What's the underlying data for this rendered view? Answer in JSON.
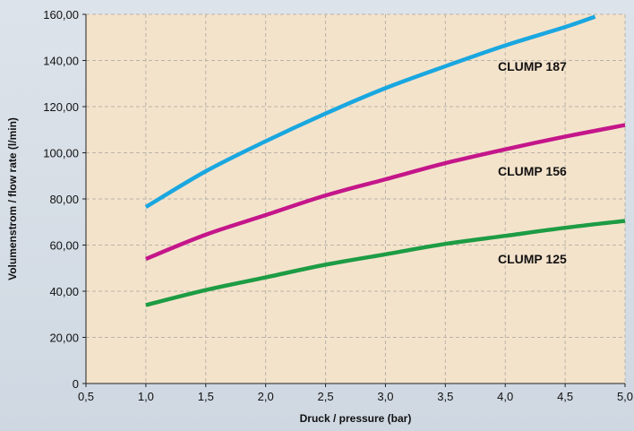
{
  "chart_data": {
    "type": "line",
    "title": "",
    "xlabel": "Druck / pressure (bar)",
    "ylabel": "Volumenstrom / flow rate (l/min)",
    "xlim": [
      0.5,
      5.0
    ],
    "ylim": [
      0,
      160
    ],
    "x_ticks": [
      "0,5",
      "1,0",
      "1,5",
      "2,0",
      "2,5",
      "3,0",
      "3,5",
      "4,0",
      "4,5",
      "5,0"
    ],
    "y_ticks": [
      "0",
      "20,00",
      "40,00",
      "60,00",
      "80,00",
      "100,00",
      "120,00",
      "140,00",
      "160,00"
    ],
    "grid": true,
    "background_color": "#f4e3cb",
    "series": [
      {
        "name": "CLUMP 187",
        "color": "#1aa7e0",
        "x": [
          1.0,
          1.5,
          2.0,
          2.5,
          3.0,
          3.5,
          4.0,
          4.5,
          4.75
        ],
        "y": [
          76.5,
          92,
          105,
          117,
          128,
          137.5,
          146.5,
          154.5,
          159
        ]
      },
      {
        "name": "CLUMP 156",
        "color": "#c4168a",
        "x": [
          1.0,
          1.5,
          2.0,
          2.5,
          3.0,
          3.5,
          4.0,
          4.5,
          5.0
        ],
        "y": [
          54,
          64.5,
          73,
          81.5,
          88.5,
          95.5,
          101.5,
          107,
          112
        ]
      },
      {
        "name": "CLUMP 125",
        "color": "#1d9c44",
        "x": [
          1.0,
          1.5,
          2.0,
          2.5,
          3.0,
          3.5,
          4.0,
          4.5,
          5.0
        ],
        "y": [
          34,
          40.5,
          46,
          51.5,
          56,
          60.5,
          64,
          67.5,
          70.5
        ]
      }
    ]
  }
}
